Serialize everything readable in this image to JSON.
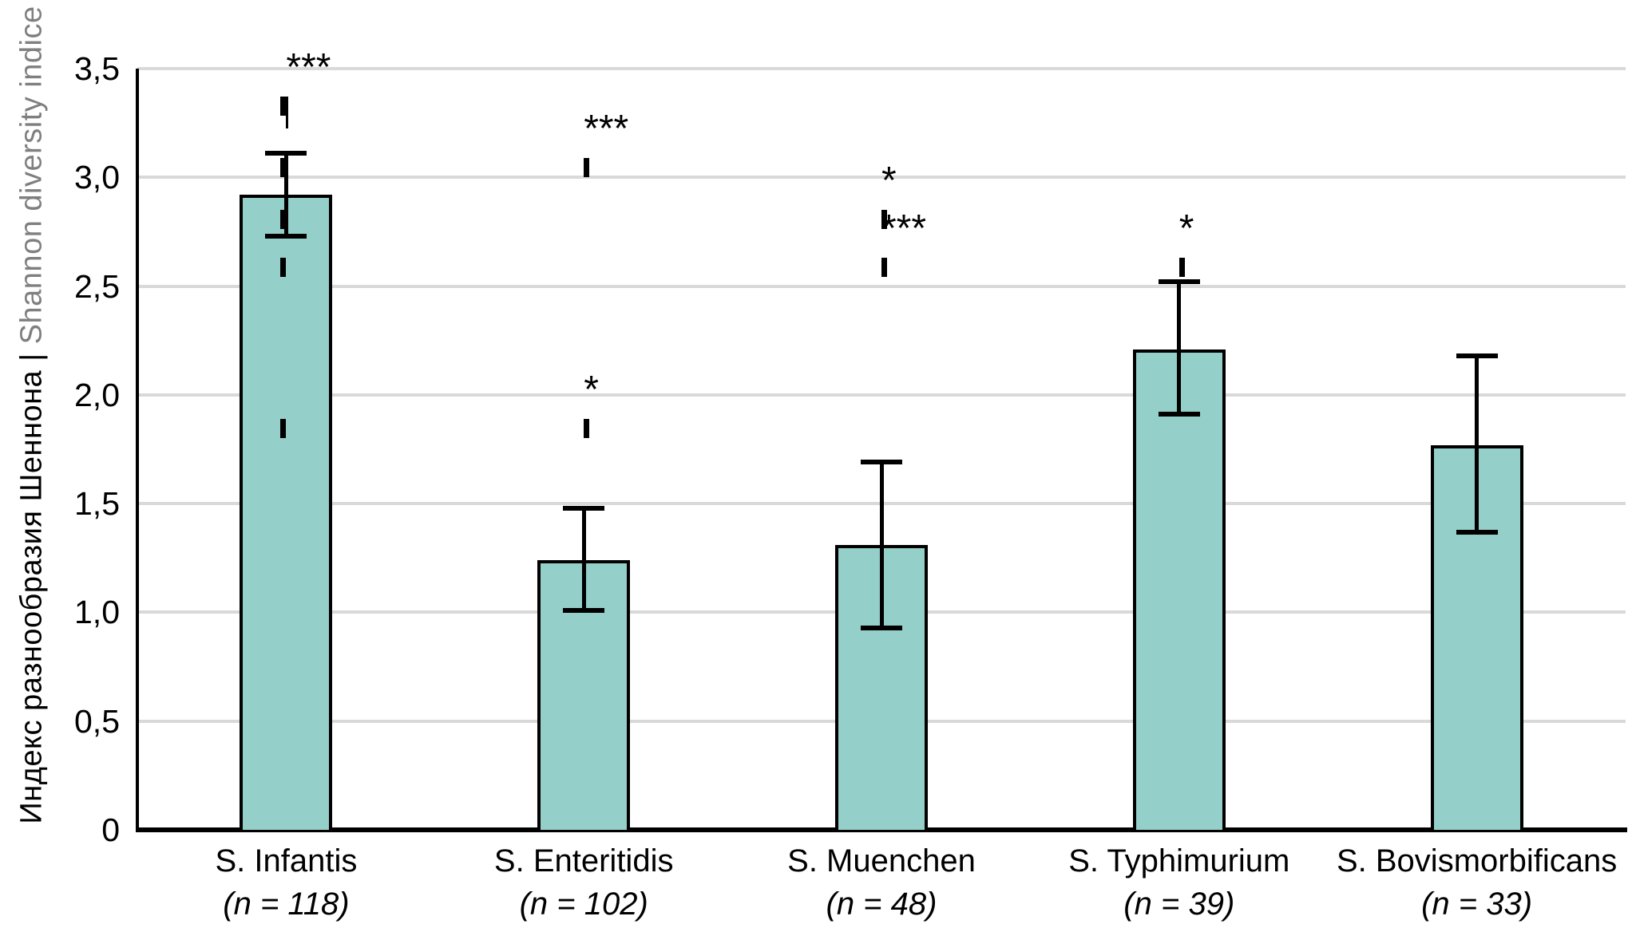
{
  "chart_data": {
    "type": "bar",
    "title": "",
    "ylabel_parts": [
      {
        "text": "Индекс разнообразия Шеннона | ",
        "color": "#000000"
      },
      {
        "text": "Shannon diversity indice",
        "color": "#7f7f7f"
      }
    ],
    "categories": [
      {
        "name": "S. Infantis",
        "n_label": "(n = 118)"
      },
      {
        "name": "S. Enteritidis",
        "n_label": "(n = 102)"
      },
      {
        "name": "S. Muenchen",
        "n_label": "(n = 48)"
      },
      {
        "name": "S. Typhimurium",
        "n_label": "(n = 39)"
      },
      {
        "name": "S. Bovismorbificans",
        "n_label": "(n = 33)"
      }
    ],
    "values": [
      2.92,
      1.24,
      1.31,
      2.21,
      1.77
    ],
    "error_high": [
      3.11,
      1.48,
      1.69,
      2.52,
      2.18
    ],
    "error_low": [
      2.73,
      1.01,
      0.93,
      1.91,
      1.37
    ],
    "yticks": [
      {
        "value": 0.0,
        "label": "0"
      },
      {
        "value": 0.5,
        "label": "0,5"
      },
      {
        "value": 1.0,
        "label": "1,0"
      },
      {
        "value": 1.5,
        "label": "1,5"
      },
      {
        "value": 2.0,
        "label": "2,0"
      },
      {
        "value": 2.5,
        "label": "2,5"
      },
      {
        "value": 3.0,
        "label": "3,0"
      },
      {
        "value": 3.5,
        "label": "3,5"
      }
    ],
    "ylim": [
      0,
      3.5
    ],
    "grid": true,
    "legend": "none",
    "colors": {
      "bar_fill": "#94cfc9",
      "bar_border": "#000000",
      "gridline": "#d9d9d9",
      "axis": "#000000",
      "error_bar": "#000000",
      "bracket": "#000000"
    },
    "significance_brackets": [
      {
        "from": 0,
        "to": 3,
        "label": "***",
        "level": 3.4
      },
      {
        "from": 1,
        "to": 4,
        "label": "***",
        "level": 3.12
      },
      {
        "from": 2,
        "to": 4,
        "label": "*",
        "level": 2.88
      },
      {
        "from": 2,
        "to": 3,
        "label": "***",
        "level": 2.66
      },
      {
        "from": 3,
        "to": 4,
        "label": "*",
        "level": 2.66
      },
      {
        "from": 1,
        "to": 2,
        "label": "*",
        "level": 1.92
      }
    ]
  }
}
